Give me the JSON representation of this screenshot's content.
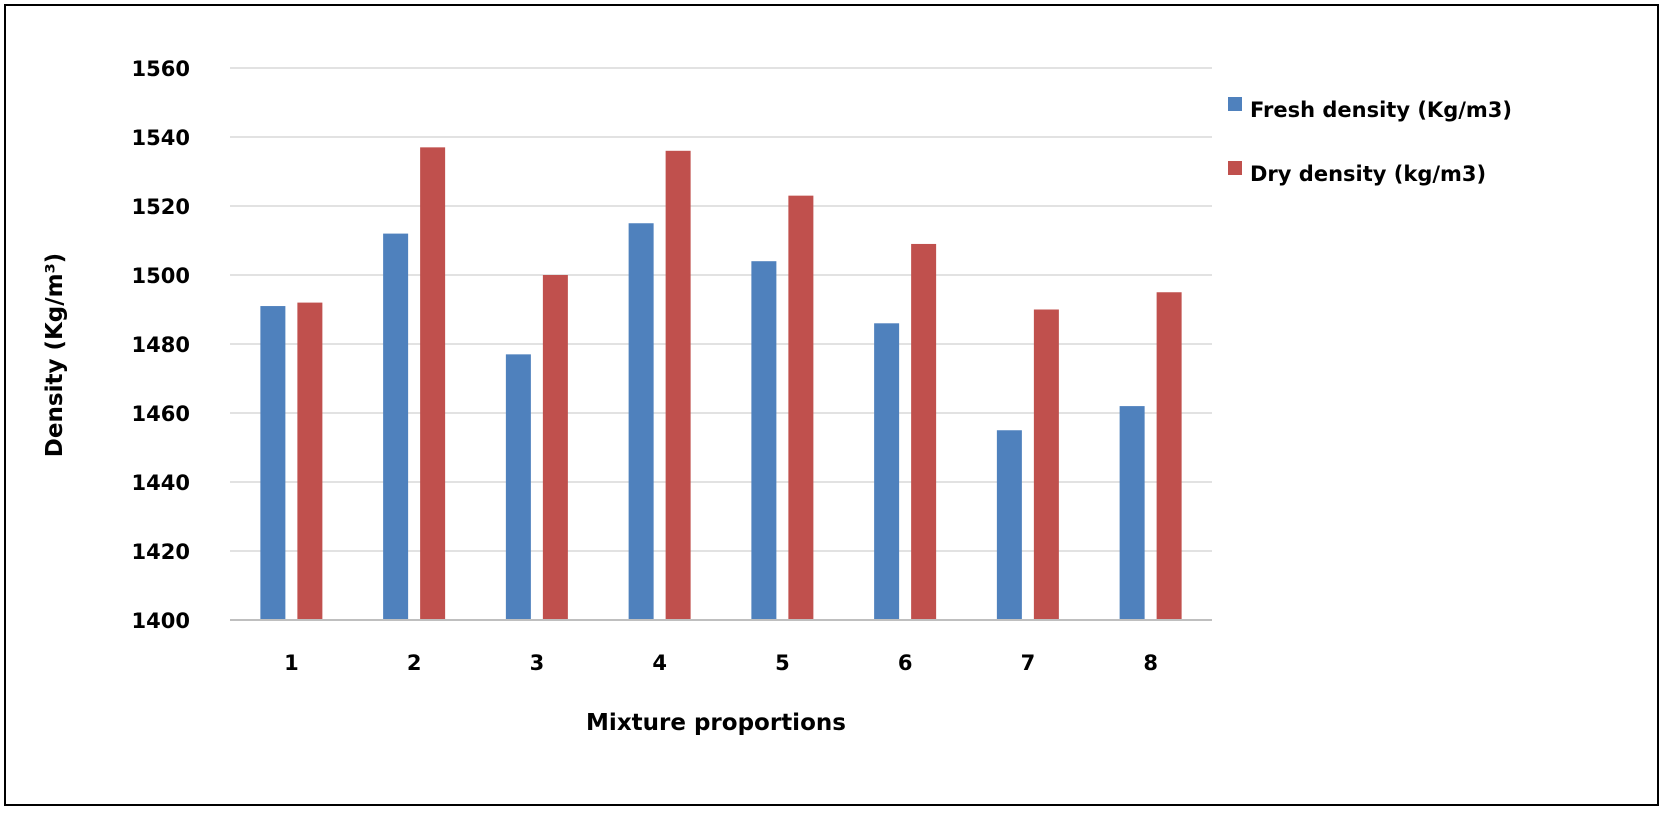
{
  "chart_data": {
    "type": "bar",
    "categories": [
      "1",
      "2",
      "3",
      "4",
      "5",
      "6",
      "7",
      "8"
    ],
    "series": [
      {
        "name": "Fresh density (Kg/m3)",
        "color": "#4F81BD",
        "values": [
          1491,
          1512,
          1477,
          1515,
          1504,
          1486,
          1455,
          1462
        ]
      },
      {
        "name": "Dry density (kg/m3)",
        "color": "#C0504D",
        "values": [
          1492,
          1537,
          1500,
          1536,
          1523,
          1509,
          1490,
          1495
        ]
      }
    ],
    "xlabel": "Mixture proportions",
    "ylabel": "Density (Kg/m³)",
    "ylim": [
      1400,
      1560
    ],
    "yticks": [
      1400,
      1420,
      1440,
      1460,
      1480,
      1500,
      1520,
      1540,
      1560
    ],
    "grid": true,
    "legend": "right",
    "gridColor": "#D9D9D9",
    "axisColor": "#BFBFBF"
  }
}
